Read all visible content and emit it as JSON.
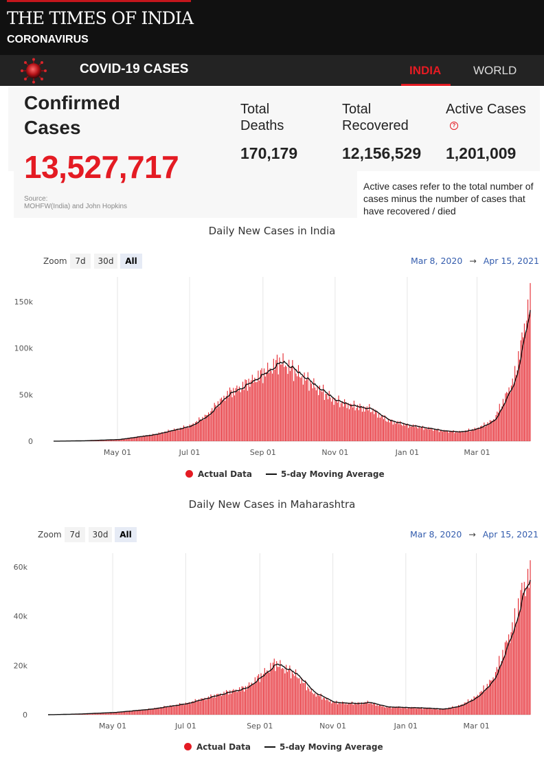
{
  "header": {
    "brand": "THE TIMES OF INDIA",
    "section": "CORONAVIRUS"
  },
  "nav": {
    "title": "COVID-19 CASES",
    "tabs": [
      {
        "label": "INDIA",
        "active": true
      },
      {
        "label": "WORLD",
        "active": false
      }
    ]
  },
  "stats": {
    "confirmed_label": "Confirmed Cases",
    "confirmed_value": "13,527,717",
    "source_label": "Source:",
    "source_text": "MOHFW(India) and John Hopkins",
    "deaths_label": "Total Deaths",
    "deaths_value": "170,179",
    "recovered_label": "Total Recovered",
    "recovered_value": "12,156,529",
    "active_label": "Active Cases",
    "active_value": "1,201,009",
    "active_tooltip": "Active cases refer to the total number of cases minus the number of cases that have recovered / died"
  },
  "colors": {
    "accent": "#e41b23",
    "masthead": "#111111",
    "navbar": "#232323",
    "range_text": "#335cad"
  },
  "icons": {
    "virus": "coronavirus-icon",
    "help": "question-circle-icon"
  },
  "charts": [
    {
      "title": "Daily New Cases in India",
      "zoom_label": "Zoom",
      "zoom_options": [
        "7d",
        "30d",
        "All"
      ],
      "zoom_selected": "All",
      "range_start": "Mar 8, 2020",
      "range_arrow": "→",
      "range_end": "Apr 15, 2021",
      "legend_bar": "Actual Data",
      "legend_line": "5-day Moving Average"
    },
    {
      "title": "Daily New Cases in Maharashtra",
      "zoom_label": "Zoom",
      "zoom_options": [
        "7d",
        "30d",
        "All"
      ],
      "zoom_selected": "All",
      "range_start": "Mar 8, 2020",
      "range_arrow": "→",
      "range_end": "Apr 15, 2021",
      "legend_bar": "Actual Data",
      "legend_line": "5-day Moving Average"
    }
  ],
  "chart_data": [
    {
      "type": "bar",
      "title": "Daily New Cases in India",
      "x_start": "2020-03-08",
      "x_end": "2021-04-15",
      "x_ticks": [
        "May 01",
        "Jul 01",
        "Sep 01",
        "Nov 01",
        "Jan 01",
        "Mar 01"
      ],
      "y_ticks": [
        "0",
        "50k",
        "100k",
        "150k"
      ],
      "ylim": [
        0,
        175000
      ],
      "grid": true,
      "legend": "bottom",
      "series": [
        {
          "name": "Actual Data",
          "kind": "bar",
          "color": "#e41b23"
        },
        {
          "name": "5-day Moving Average",
          "kind": "line",
          "color": "#111111"
        }
      ],
      "keyframes": [
        [
          "2020-03-08",
          50
        ],
        [
          "2020-04-01",
          500
        ],
        [
          "2020-05-01",
          2000
        ],
        [
          "2020-06-01",
          8000
        ],
        [
          "2020-07-01",
          18000
        ],
        [
          "2020-07-15",
          30000
        ],
        [
          "2020-08-01",
          55000
        ],
        [
          "2020-08-15",
          65000
        ],
        [
          "2020-09-01",
          80000
        ],
        [
          "2020-09-16",
          95000
        ],
        [
          "2020-10-01",
          80000
        ],
        [
          "2020-10-15",
          65000
        ],
        [
          "2020-11-01",
          48000
        ],
        [
          "2020-11-15",
          42000
        ],
        [
          "2020-12-01",
          38000
        ],
        [
          "2020-12-15",
          25000
        ],
        [
          "2021-01-01",
          19000
        ],
        [
          "2021-01-15",
          16000
        ],
        [
          "2021-02-01",
          12000
        ],
        [
          "2021-02-15",
          11000
        ],
        [
          "2021-03-01",
          15000
        ],
        [
          "2021-03-15",
          25000
        ],
        [
          "2021-04-01",
          72000
        ],
        [
          "2021-04-08",
          120000
        ],
        [
          "2021-04-15",
          168000
        ]
      ]
    },
    {
      "type": "bar",
      "title": "Daily New Cases in Maharashtra",
      "x_start": "2020-03-08",
      "x_end": "2021-04-15",
      "x_ticks": [
        "May 01",
        "Jul 01",
        "Sep 01",
        "Nov 01",
        "Jan 01",
        "Mar 01"
      ],
      "y_ticks": [
        "0",
        "20k",
        "40k",
        "60k"
      ],
      "ylim": [
        0,
        65000
      ],
      "grid": true,
      "legend": "bottom",
      "series": [
        {
          "name": "Actual Data",
          "kind": "bar",
          "color": "#e41b23"
        },
        {
          "name": "5-day Moving Average",
          "kind": "line",
          "color": "#111111"
        }
      ],
      "keyframes": [
        [
          "2020-03-08",
          10
        ],
        [
          "2020-04-01",
          300
        ],
        [
          "2020-05-01",
          1000
        ],
        [
          "2020-06-01",
          2500
        ],
        [
          "2020-07-01",
          5000
        ],
        [
          "2020-08-01",
          9500
        ],
        [
          "2020-08-20",
          12000
        ],
        [
          "2020-09-01",
          17000
        ],
        [
          "2020-09-14",
          23000
        ],
        [
          "2020-10-01",
          18000
        ],
        [
          "2020-10-15",
          10000
        ],
        [
          "2020-11-01",
          5500
        ],
        [
          "2020-11-20",
          5000
        ],
        [
          "2020-12-01",
          5500
        ],
        [
          "2020-12-15",
          3500
        ],
        [
          "2021-01-01",
          3200
        ],
        [
          "2021-01-15",
          3000
        ],
        [
          "2021-02-01",
          2500
        ],
        [
          "2021-02-15",
          4000
        ],
        [
          "2021-03-01",
          8000
        ],
        [
          "2021-03-15",
          16000
        ],
        [
          "2021-04-01",
          40000
        ],
        [
          "2021-04-08",
          55000
        ],
        [
          "2021-04-15",
          62000
        ]
      ]
    }
  ]
}
